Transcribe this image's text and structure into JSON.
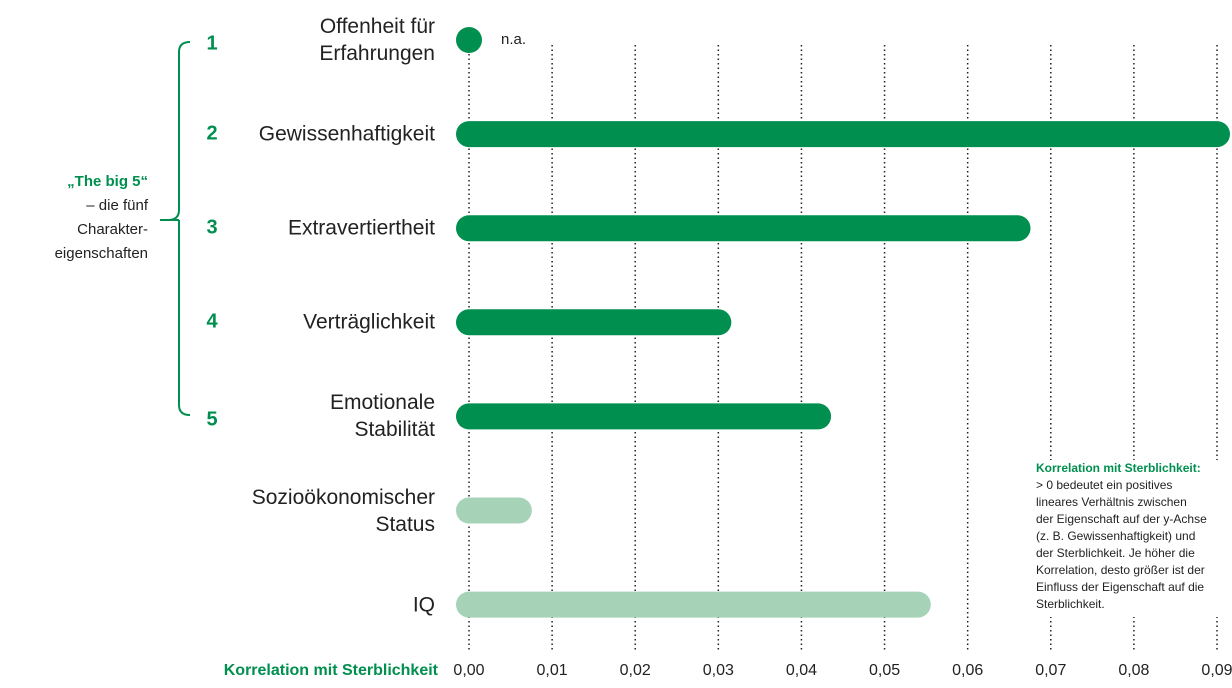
{
  "chart_data": {
    "type": "bar",
    "orientation": "horizontal",
    "categories": [
      "Offenheit für\nErfahrungen",
      "Gewissenhaftigkeit",
      "Extravertiertheit",
      "Verträglichkeit",
      "Emotionale\nStabilität",
      "Sozioökonomischer\nStatus",
      "IQ"
    ],
    "numbers": [
      1,
      2,
      3,
      4,
      5,
      null,
      null
    ],
    "values": [
      null,
      0.09,
      0.066,
      0.03,
      0.042,
      0.006,
      0.054
    ],
    "value_labels": [
      "n.a.",
      null,
      null,
      null,
      null,
      null,
      null
    ],
    "colors": [
      "#008f4f",
      "#008f4f",
      "#008f4f",
      "#008f4f",
      "#008f4f",
      "#a6d3b7",
      "#a6d3b7"
    ],
    "xlabel": "Korrelation mit Sterblichkeit",
    "xlim": [
      0,
      0.09
    ],
    "xticks": [
      {
        "value": 0,
        "label": "0,00"
      },
      {
        "value": 0.01,
        "label": "0,01"
      },
      {
        "value": 0.02,
        "label": "0,02"
      },
      {
        "value": 0.03,
        "label": "0,03"
      },
      {
        "value": 0.04,
        "label": "0,04"
      },
      {
        "value": 0.05,
        "label": "0,05"
      },
      {
        "value": 0.06,
        "label": "0,06"
      },
      {
        "value": 0.07,
        "label": "0,07"
      },
      {
        "value": 0.08,
        "label": "0,08"
      },
      {
        "value": 0.09,
        "label": "0,09"
      }
    ],
    "grid": true,
    "group_label": {
      "title": "„The big 5“",
      "text": "– die fünf\nCharakter-\neigenschaften"
    },
    "note": {
      "title": "Korrelation mit Sterblichkeit:",
      "text": "> 0 bedeutet ein positives\nlineares Verhältnis zwischen\nder Eigenschaft auf der y-Achse\n(z. B. Gewissenhaftigkeit) und\nder Sterblichkeit. Je höher die\nKorrelation, desto größer ist der\nEinfluss der Eigenschaft auf die\nSterblichkeit."
    }
  }
}
